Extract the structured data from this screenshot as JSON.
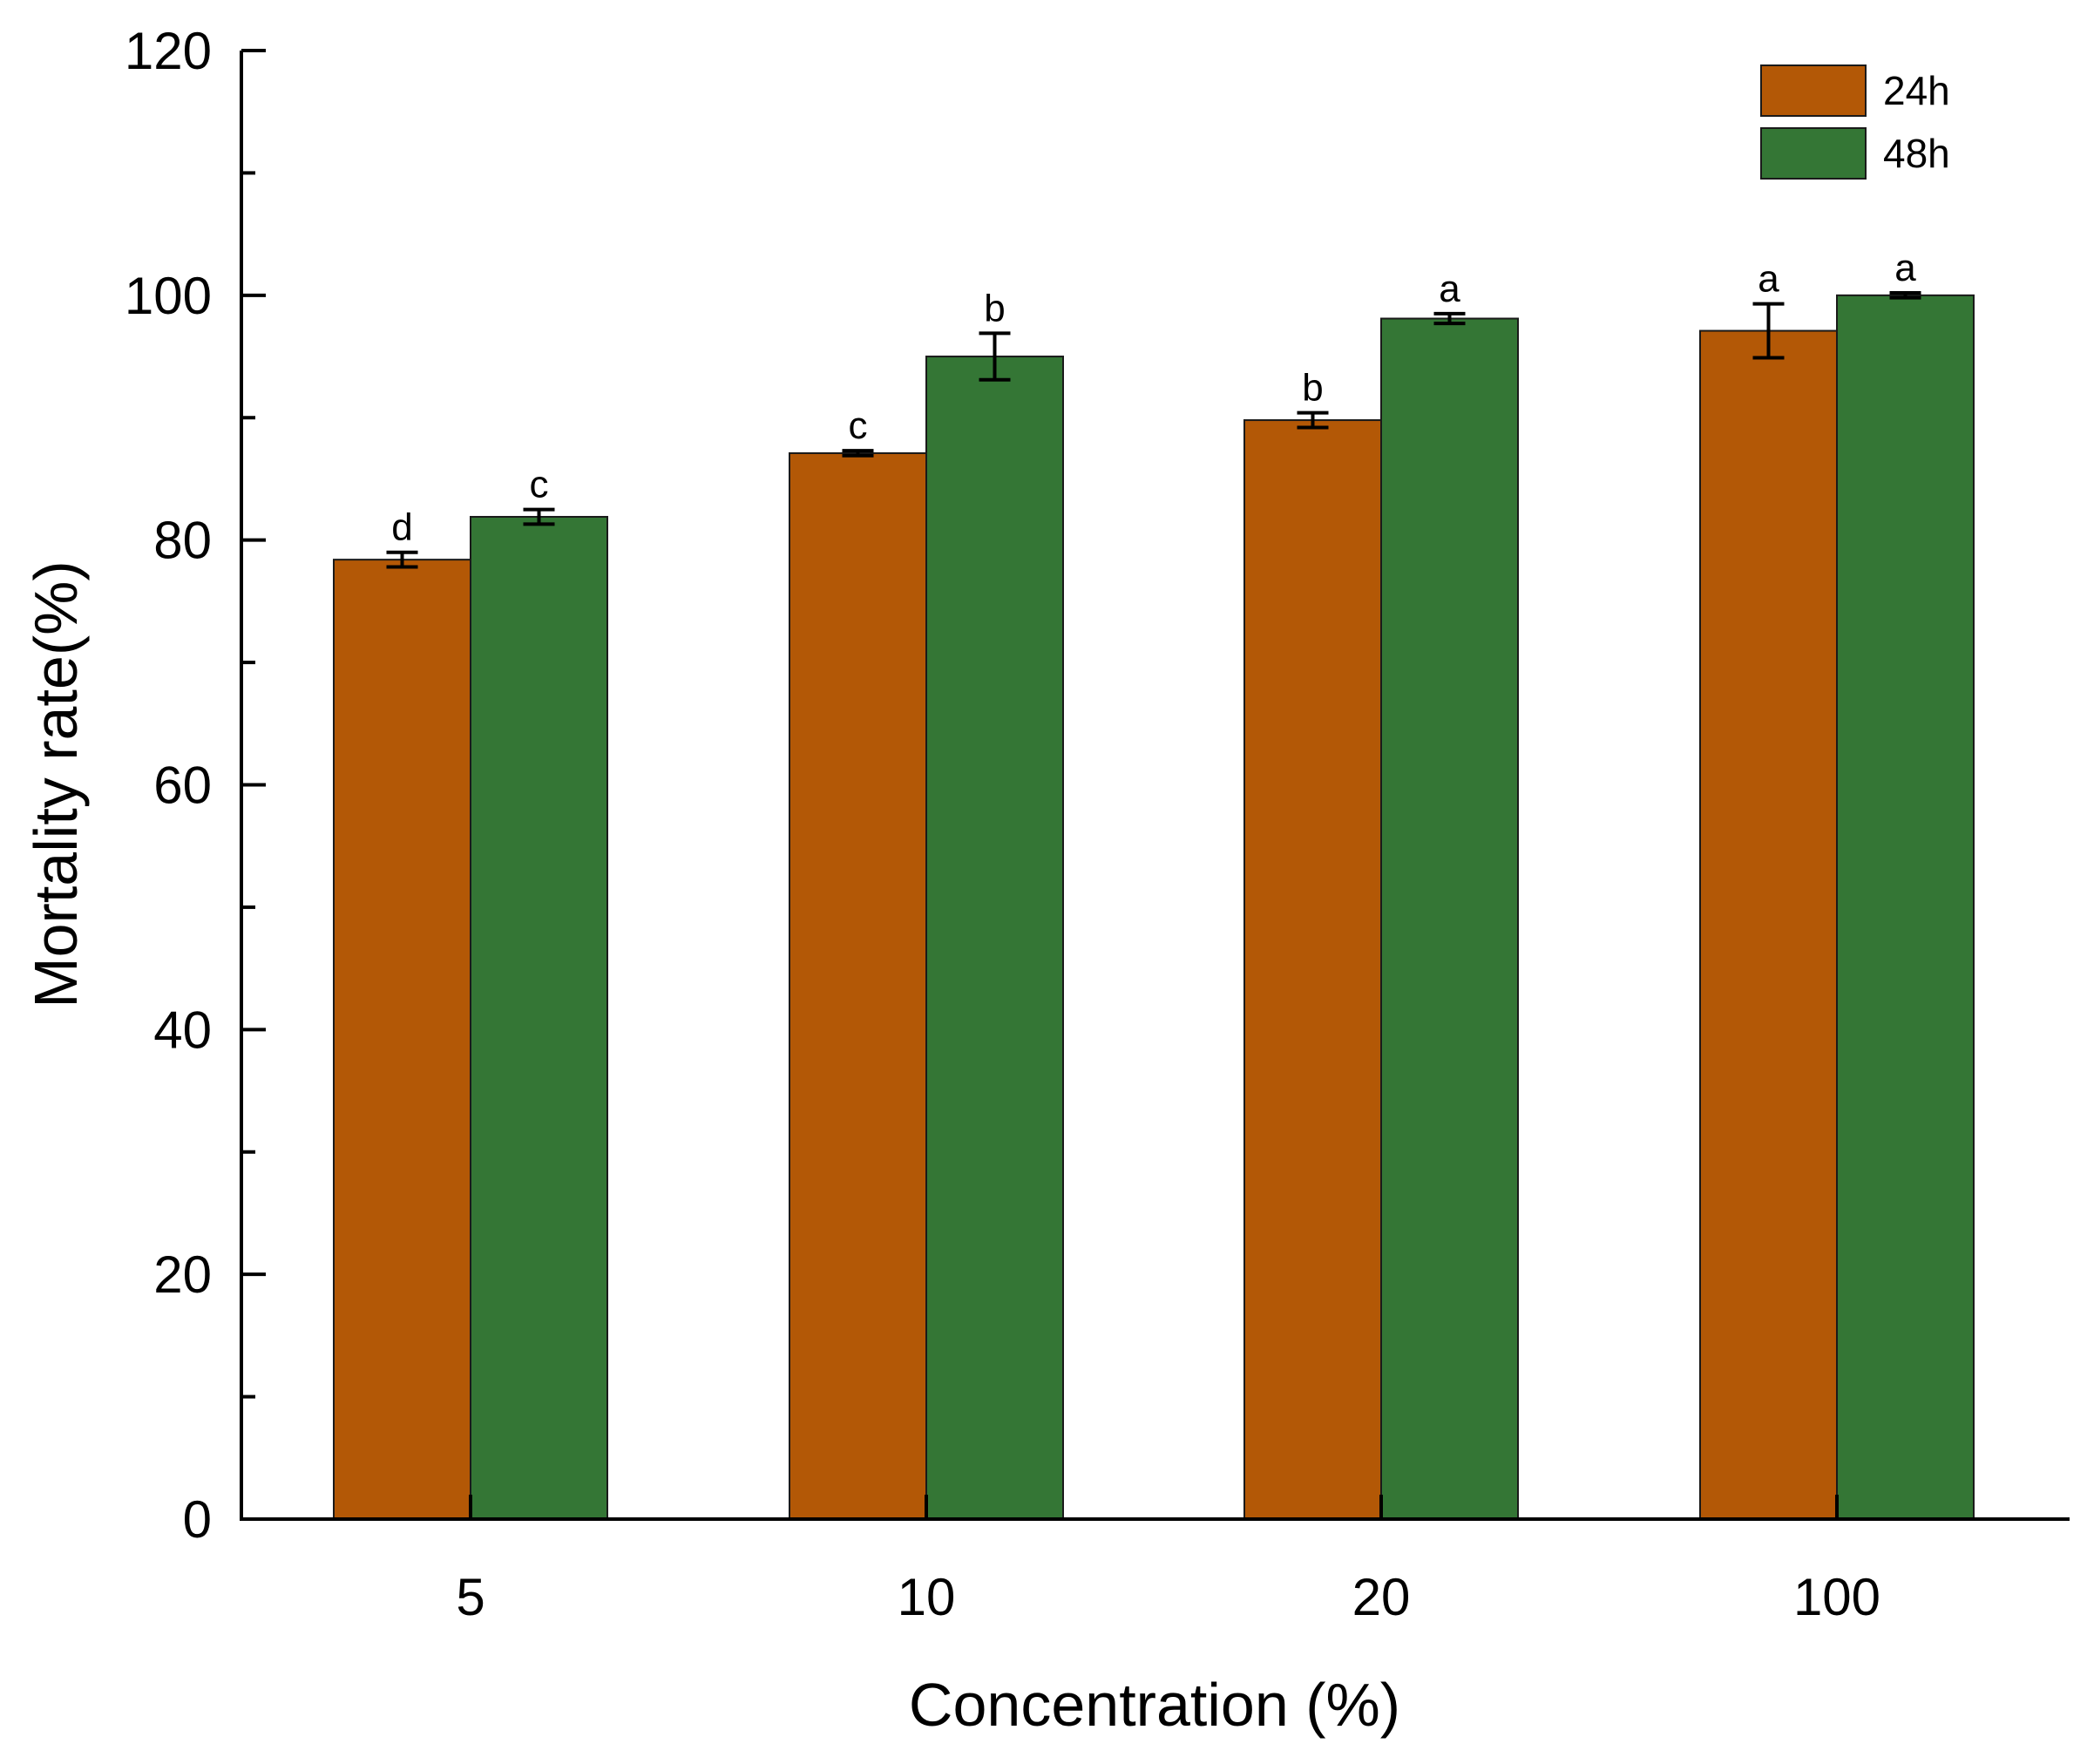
{
  "chart_data": {
    "type": "bar",
    "xlabel": "Concentration (%)",
    "ylabel": "Mortality rate(%)",
    "ylim": [
      0,
      120
    ],
    "yticks": [
      0,
      20,
      40,
      60,
      80,
      100,
      120
    ],
    "categories": [
      "5",
      "10",
      "20",
      "100"
    ],
    "legend_position": "top-right",
    "series": [
      {
        "name": "24h",
        "color": "#b35806",
        "values": [
          78.4,
          87.1,
          89.8,
          97.1
        ],
        "errors": [
          0.6,
          0.2,
          0.6,
          2.2
        ],
        "labels": [
          "d",
          "c",
          "b",
          "a"
        ]
      },
      {
        "name": "48h",
        "color": "#347635",
        "values": [
          81.9,
          95.0,
          98.1,
          100.0
        ],
        "errors": [
          0.6,
          1.9,
          0.4,
          0.2
        ],
        "labels": [
          "c",
          "b",
          "a",
          "a"
        ]
      }
    ]
  }
}
